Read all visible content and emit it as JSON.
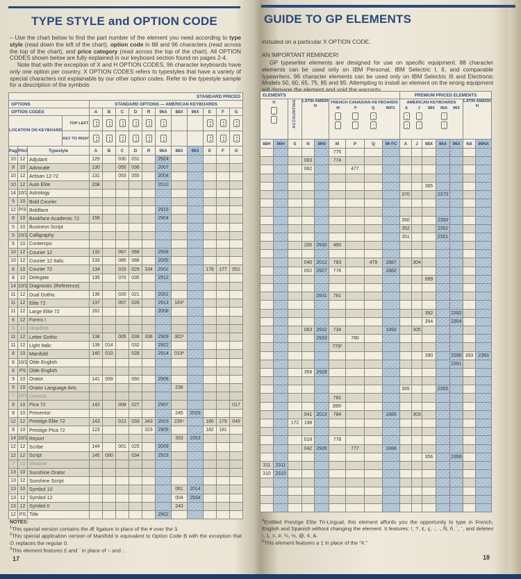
{
  "page_left": {
    "title": "TYPE STYLE and OPTION CODE",
    "intro1_parts": [
      [
        "– Use the chart below to find the part number of the element you need according to ",
        false
      ],
      [
        "type style",
        true
      ],
      [
        " (read down the left of the chart), ",
        false
      ],
      [
        "option code",
        true
      ],
      [
        " in 88 and 96 characters (read across the top of the chart), and ",
        false
      ],
      [
        "price category",
        true
      ],
      [
        " (read across the top of the chart). All OPTION CODES shown below are fully explained in our keyboard section found on pages 2-4.",
        false
      ]
    ],
    "intro2": "Note that with the exception of X and H OPTION CODES, 96 character keyboards have only one option per country. X OPTION CODES refers to typestyles that have a variety of special characters not explainable by our other option codes. Refer to the typestyle sample for a description of the symbols",
    "table": {
      "standard_priced_label": "STANDARD PRICED",
      "options_label": "OPTIONS",
      "standard_options_label": "STANDARD OPTIONS — AMERICAN KEYBOARDS",
      "option_codes_label": "OPTION CODES",
      "location_label": "LOCATION ON KEYBOARD",
      "top_left_key_label": "TOP LEFT KEY",
      "key_right_label": "KEY TO RIGHT OF \"P\"",
      "columns": [
        "Page",
        "Pitch",
        "Typestyle",
        "A",
        "B",
        "C",
        "D",
        "R",
        "96A",
        "88X",
        "96X",
        "E",
        "F",
        "G"
      ],
      "option_letters": [
        "A",
        "B",
        "C",
        "D",
        "R",
        "96A",
        "88X",
        "96X",
        "E",
        "F",
        "G"
      ],
      "key_columns": [
        "A",
        "B",
        "C",
        "D",
        "R",
        "96A",
        "E",
        "F",
        "G"
      ],
      "rows": [
        {
          "page": "10",
          "pitch": "12",
          "name": "Adjutant",
          "cells": {
            "A": "129",
            "C": "030",
            "D": "031",
            "96A": "2924"
          }
        },
        {
          "page": "8",
          "pitch": "10",
          "name": "Advocate",
          "cells": {
            "A": "130",
            "C": "050",
            "D": "036",
            "96A": "2007"
          }
        },
        {
          "page": "10",
          "pitch": "12",
          "name": "Artisan 12-72",
          "cells": {
            "A": "131",
            "C": "053",
            "D": "055",
            "96A": "2004"
          }
        },
        {
          "page": "10",
          "pitch": "12",
          "name": "Auto Elite",
          "cells": {
            "A": "208",
            "96A": "2010"
          }
        },
        {
          "page": "14",
          "pitch": "10/12",
          "name": "Astrology",
          "cells": {}
        },
        {
          "page": "5",
          "pitch": "10",
          "name": "Bold Courier",
          "cells": {}
        },
        {
          "page": "12",
          "pitch": "P/S",
          "name": "Boldface",
          "cells": {
            "96A": "2915"
          }
        },
        {
          "page": "8",
          "pitch": "10",
          "name": "Bookface Academic 72",
          "cells": {
            "A": "158",
            "96A": "2904"
          }
        },
        {
          "page": "5",
          "pitch": "10",
          "name": "Business Script",
          "cells": {}
        },
        {
          "page": "5",
          "pitch": "10/12",
          "name": "Calligraphy",
          "cells": {}
        },
        {
          "page": "5",
          "pitch": "10",
          "name": "Contempo",
          "cells": {}
        },
        {
          "page": "10",
          "pitch": "12",
          "name": "Courier 12",
          "cells": {
            "A": "132",
            "C": "067",
            "D": "068",
            "96A": "2908"
          }
        },
        {
          "page": "10",
          "pitch": "12",
          "name": "Courier 12 Italic",
          "cells": {
            "A": "133",
            "C": "085",
            "D": "086",
            "96A": "2005"
          }
        },
        {
          "page": "8",
          "pitch": "10",
          "name": "Courier 72",
          "cells": {
            "A": "134",
            "C": "015",
            "D": "029",
            "R": "334",
            "96A": "2002",
            "E": "178",
            "F": "177",
            "G": "051"
          }
        },
        {
          "page": "8",
          "pitch": "10",
          "name": "Delegate",
          "cells": {
            "A": "135",
            "C": "070",
            "D": "035",
            "96A": "2912"
          }
        },
        {
          "page": "14",
          "pitch": "10/12",
          "name": "Diagnostic (Reference)",
          "cells": {}
        },
        {
          "page": "11",
          "pitch": "12",
          "name": "Dual Gothic",
          "cells": {
            "A": "136",
            "C": "020",
            "D": "021",
            "96A": "2001"
          }
        },
        {
          "page": "11",
          "pitch": "12",
          "name": "Elite 72",
          "cells": {
            "A": "137",
            "C": "007",
            "D": "026",
            "96A": "2913",
            "88X": "183¹"
          }
        },
        {
          "page": "11",
          "pitch": "12",
          "name": "Large Elite 72",
          "cells": {
            "A": "161",
            "96A": "2008"
          }
        },
        {
          "page": "6",
          "pitch": "12",
          "name": "Forms I",
          "cells": {}
        },
        {
          "page": "6",
          "pitch": "10",
          "name": "Headline",
          "cells": {},
          "dim": true
        },
        {
          "page": "11",
          "pitch": "12",
          "name": "Letter Gothic",
          "cells": {
            "A": "138",
            "C": "005",
            "D": "039",
            "R": "338",
            "96A": "2909",
            "88X": "302¹"
          }
        },
        {
          "page": "11",
          "pitch": "12",
          "name": "Light Italic",
          "cells": {
            "A": "139",
            "B": "014",
            "D": "032",
            "96A": "2922"
          }
        },
        {
          "page": "8",
          "pitch": "10",
          "name": "Manifold",
          "cells": {
            "A": "140",
            "B": "010",
            "D": "028",
            "96A": "2914",
            "88X": "019²"
          }
        },
        {
          "page": "6",
          "pitch": "10/12",
          "name": "Olde English",
          "cells": {}
        },
        {
          "page": "6",
          "pitch": "PS",
          "name": "Olde English",
          "cells": {}
        },
        {
          "page": "9",
          "pitch": "10",
          "name": "Orator",
          "cells": {
            "A": "141",
            "B": "059",
            "D": "060",
            "96A": "2906"
          }
        },
        {
          "page": "9",
          "pitch": "10",
          "name": "Orator Language Arts",
          "cells": {
            "88X": "236"
          }
        },
        {
          "page": "7",
          "pitch": "10/12",
          "name": "Oriental",
          "cells": {},
          "dim": true
        },
        {
          "page": "9",
          "pitch": "10",
          "name": "Pica 72",
          "cells": {
            "A": "142",
            "C": "008",
            "D": "027",
            "96A": "2907",
            "G": "017"
          }
        },
        {
          "page": "9",
          "pitch": "10",
          "name": "Presentor",
          "cells": {
            "88X": "245",
            "96X": "2029"
          }
        },
        {
          "page": "12",
          "pitch": "12",
          "name": "Prestige Elite 72",
          "cells": {
            "A": "143",
            "C": "012",
            "D": "033",
            "R": "343",
            "96A": "2003",
            "88X": "235⁴",
            "E": "180",
            "F": "179",
            "G": "049"
          }
        },
        {
          "page": "9",
          "pitch": "10",
          "name": "Prestige Pica 72",
          "cells": {
            "A": "123",
            "R": "323",
            "96A": "2905",
            "E": "182",
            "F": "181"
          }
        },
        {
          "page": "14",
          "pitch": "10/12",
          "name": "Report",
          "cells": {
            "88X": "353",
            "96X": "2353"
          }
        },
        {
          "page": "12",
          "pitch": "12",
          "name": "Scribe",
          "cells": {
            "A": "144",
            "C": "001",
            "D": "025",
            "96A": "2009"
          }
        },
        {
          "page": "12",
          "pitch": "12",
          "name": "Script",
          "cells": {
            "A": "145",
            "B": "090",
            "D": "034",
            "96A": "2923"
          }
        },
        {
          "page": "7",
          "pitch": "10",
          "name": "Shadow",
          "cells": {},
          "dim": true
        },
        {
          "page": "13",
          "pitch": "10",
          "name": "Sunshine Orator",
          "cells": {}
        },
        {
          "page": "13",
          "pitch": "12",
          "name": "Sunshine Script",
          "cells": {}
        },
        {
          "page": "13",
          "pitch": "10",
          "name": "Symbol 10",
          "cells": {
            "88X": "061",
            "96X": "2014"
          }
        },
        {
          "page": "13",
          "pitch": "12",
          "name": "Symbol 12",
          "cells": {
            "88X": "004",
            "96X": "2934"
          }
        },
        {
          "page": "13",
          "pitch": "12",
          "name": "Symbol II",
          "cells": {
            "88X": "243"
          }
        },
        {
          "page": "12",
          "pitch": "PS",
          "name": "Title",
          "cells": {
            "96A": "2902"
          }
        }
      ]
    },
    "notes_heading": "NOTES:",
    "notes": [
      {
        "sup": "1",
        "text": "This special version contains the Æ ligature in place of the # over the 3."
      },
      {
        "sup": "2",
        "text": "This special application version of Manifold is equivalent to Option Code B with the exception that ∅ replaces the regular 0."
      },
      {
        "sup": "3",
        "text": "This element features £ and ¨ in place of ~ and :."
      }
    ],
    "page_number": "17"
  },
  "page_right": {
    "title": "GUIDE TO GP ELEMENTS",
    "subtitle": "included on a particular X OPTION CODE.",
    "reminder_heading": "AN IMPORTANT REMINDER!",
    "reminder_text": "GP typewriter elements are designed for use on specific equipment. 88 character elements can be used only on IBM Personal, IBM Selectric I, II, and comparable typewriters. 96 character elements can be used only on IBM Selectric III and Electronic Models 50, 60, 65, 75, 85 and 95. Attempting to install an element on the wrong equipment will damage the element and void the warranty.",
    "table": {
      "elements_label": "ELEMENTS",
      "premium_label": "PREMIUM PRICED ELEMENTS",
      "groups": {
        "h_label": "H",
        "accounting_label": "ACCOUNTING",
        "latin_label_1": "LATIN AMERICAN KEYBOARDS",
        "latin_sub_1": "N",
        "french_label": "FRENCH CANADIAN KEYBOARDS",
        "french_subcols": [
          "M",
          "P",
          "Q",
          "96FC"
        ],
        "american_label": "AMERICAN KEYBOARDS",
        "american_subcols": [
          "A",
          "J",
          "88X",
          "96A",
          "96X"
        ],
        "latin_label_2": "LATIN AMERICAN KEYBOARDS",
        "latin_sub_2": "N"
      },
      "columns": [
        "88H",
        "96H",
        "S",
        "N",
        "96N",
        "M",
        "P",
        "Q",
        "96 FC",
        "A",
        "J",
        "88X",
        "96A",
        "96X",
        "NX",
        "96NX"
      ],
      "rows": [
        {
          "cells": {
            "M": "775"
          }
        },
        {
          "cells": {
            "N": "003",
            "M": "774"
          }
        },
        {
          "cells": {
            "N": "062",
            "P": "477"
          }
        },
        {
          "cells": {}
        },
        {
          "cells": {
            "88X": "365"
          }
        },
        {
          "cells": {
            "A": "370",
            "96A": "2370"
          }
        },
        {
          "cells": {}
        },
        {
          "cells": {}
        },
        {
          "cells": {
            "A": "350",
            "96A": "2350"
          }
        },
        {
          "cells": {
            "A": "352",
            "96A": "2352"
          }
        },
        {
          "cells": {
            "A": "351",
            "96A": "2351"
          }
        },
        {
          "cells": {
            "N": "200",
            "96N": "2930",
            "M": "490"
          }
        },
        {
          "cells": {}
        },
        {
          "cells": {
            "N": "040",
            "96N": "2012",
            "M": "783",
            "Q": "479",
            "96FC": "1887",
            "J": "304"
          }
        },
        {
          "cells": {
            "N": "002",
            "96N": "2927",
            "M": "776",
            "96FC": "1882"
          }
        },
        {
          "cells": {
            "88X": "999"
          }
        },
        {
          "cells": {}
        },
        {
          "cells": {
            "96N": "2931",
            "M": "781"
          }
        },
        {
          "cells": {}
        },
        {
          "cells": {
            "88X": "392",
            "96X": "2392"
          }
        },
        {
          "cells": {
            "88X": "354",
            "96X": "2354"
          }
        },
        {
          "cells": {
            "N": "063",
            "96N": "2932",
            "M": "734",
            "96FC": "1893",
            "J": "305"
          }
        },
        {
          "cells": {
            "96N": "2933",
            "P": "780"
          }
        },
        {
          "cells": {
            "M": "779³"
          }
        },
        {
          "cells": {
            "88X": "390",
            "96X": "2390",
            "NX": "393",
            "96NX": "2393"
          }
        },
        {
          "cells": {
            "96X": "2391"
          }
        },
        {
          "cells": {
            "N": "359",
            "96N": "2928"
          }
        },
        {
          "cells": {}
        },
        {
          "cells": {
            "A": "355",
            "96A": "2355"
          }
        },
        {
          "cells": {
            "M": "782"
          }
        },
        {
          "cells": {
            "M": "399⁵"
          }
        },
        {
          "cells": {
            "N": "041",
            "96N": "2013",
            "M": "784",
            "96FC": "1885",
            "J": "303"
          }
        },
        {
          "cells": {
            "S": "172",
            "N": "198"
          }
        },
        {
          "cells": {}
        },
        {
          "cells": {
            "N": "018",
            "M": "778"
          }
        },
        {
          "cells": {
            "N": "042",
            "96N": "2935",
            "P": "777",
            "96FC": "1888"
          }
        },
        {
          "cells": {
            "88X": "356",
            "96X": "2356"
          }
        },
        {
          "cells": {
            "88H": "311",
            "96H": "2311"
          }
        },
        {
          "cells": {
            "88H": "310",
            "96H": "2310"
          }
        },
        {
          "cells": {}
        },
        {
          "cells": {}
        },
        {
          "cells": {}
        },
        {
          "cells": {}
        }
      ]
    },
    "notes": [
      {
        "sup": "4",
        "text": "Entitled Prestige Elite Tri-Lingual, this element affords you the opportunity to type in French, English and Spanish without changing the element. It features: !, ?, £, ç, ·, ·, Ñ, ñ, ´, ¨, and deletes !, 1, =, #, ¼, ½, @, ¢, &."
      },
      {
        "sup": "5",
        "text": "This element features a 1 in place of the \"¢.\""
      }
    ],
    "page_number": "18"
  }
}
